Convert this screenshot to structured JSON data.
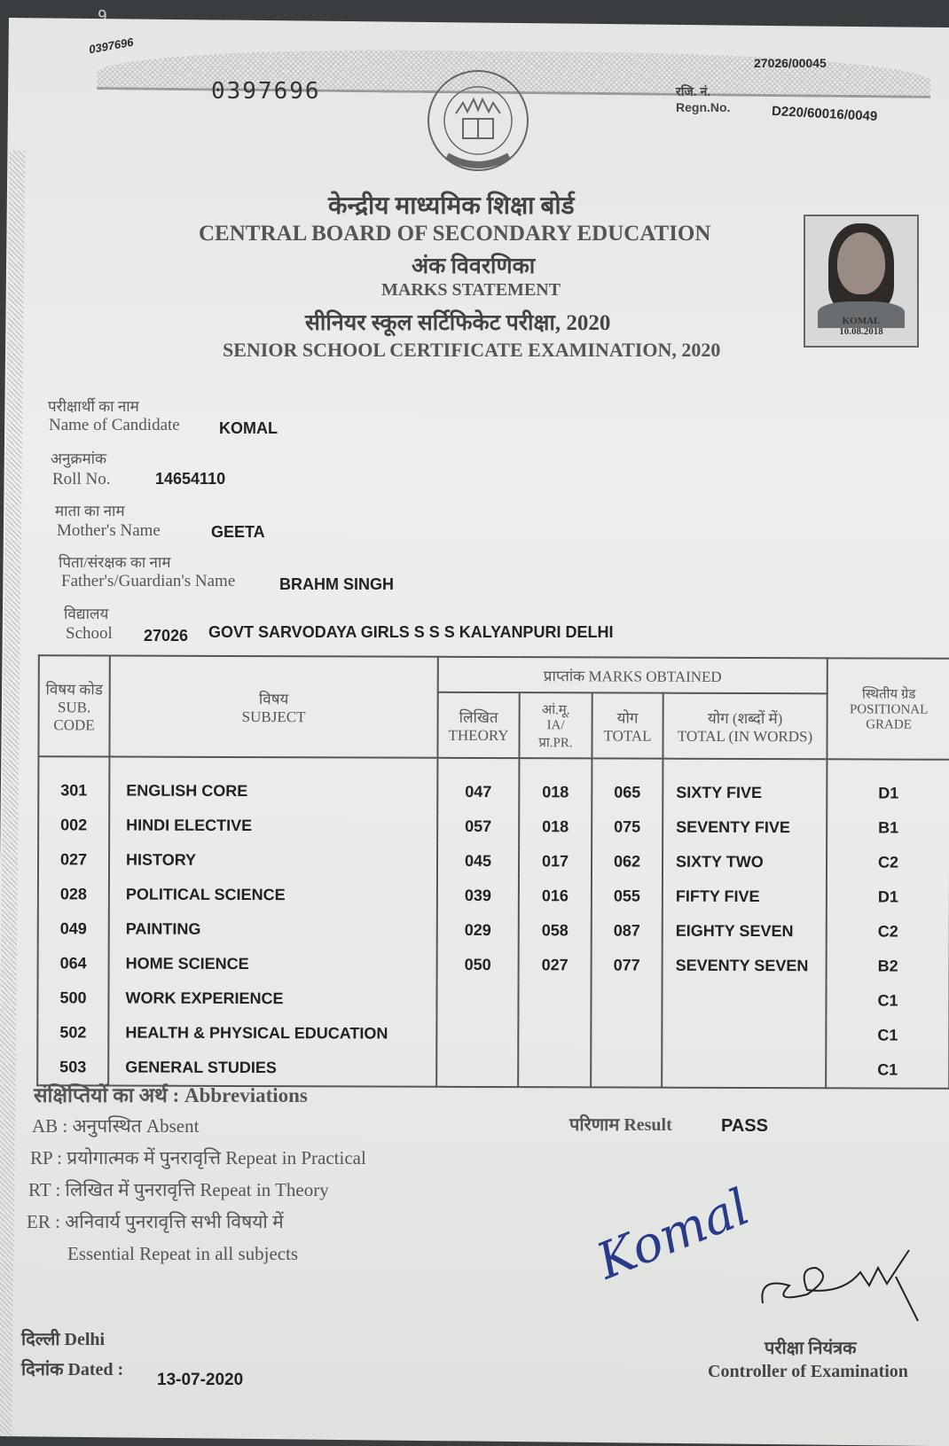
{
  "corner_number": "9",
  "serial_small": "0397696",
  "school_ref_small": "27026/00045",
  "serial": "0397696",
  "regn": {
    "label_hi": "रजि. नं.",
    "label_en": "Regn.No.",
    "value": "D220/60016/0049"
  },
  "logo_text": "केन्द्रीय माध्यमिक शिक्षा बोर्ड · भारत",
  "header": {
    "board_hi": "केन्द्रीय माध्यमिक शिक्षा बोर्ड",
    "board_en": "CENTRAL BOARD OF SECONDARY EDUCATION",
    "doc_hi": "अंक विवरणिका",
    "doc_en": "MARKS STATEMENT",
    "exam_hi": "सीनियर स्कूल सर्टिफिकेट परीक्षा, 2020",
    "exam_en": "SENIOR SCHOOL CERTIFICATE EXAMINATION, 2020"
  },
  "photo": {
    "name": "KOMAL",
    "date": "10.08.2018"
  },
  "candidate": {
    "name": {
      "label_hi": "परीक्षार्थी का नाम",
      "label_en": "Name of Candidate",
      "value": "KOMAL"
    },
    "roll": {
      "label_hi": "अनुक्रमांक",
      "label_en": "Roll No.",
      "value": "14654110"
    },
    "mother": {
      "label_hi": "माता का नाम",
      "label_en": "Mother's Name",
      "value": "GEETA"
    },
    "father": {
      "label_hi": "पिता/संरक्षक का नाम",
      "label_en": "Father's/Guardian's Name",
      "value": "BRAHM SINGH"
    },
    "school": {
      "label_hi": "विद्यालय",
      "label_en": "School",
      "code": "27026",
      "value": "GOVT SARVODAYA GIRLS S S S KALYANPURI DELHI"
    }
  },
  "table": {
    "headers": {
      "code_hi": "विषय कोड",
      "code_en1": "SUB.",
      "code_en2": "CODE",
      "subject_hi": "विषय",
      "subject_en": "SUBJECT",
      "marks_group": "प्राप्तांक MARKS OBTAINED",
      "theory_hi": "लिखित",
      "theory_en": "THEORY",
      "ia_hi": "आं.मू.",
      "ia_en": "IA/",
      "ia_pr": "प्रा.PR.",
      "total_hi": "योग",
      "total_en": "TOTAL",
      "words_hi": "योग (शब्दों में)",
      "words_en": "TOTAL (IN WORDS)",
      "grade_hi": "स्थितीय ग्रेड",
      "grade_en1": "POSITIONAL",
      "grade_en2": "GRADE"
    },
    "rows": [
      {
        "code": "301",
        "subject": "ENGLISH CORE",
        "theory": "047",
        "ia": "018",
        "total": "065",
        "words": "SIXTY FIVE",
        "grade": "D1"
      },
      {
        "code": "002",
        "subject": "HINDI ELECTIVE",
        "theory": "057",
        "ia": "018",
        "total": "075",
        "words": "SEVENTY FIVE",
        "grade": "B1"
      },
      {
        "code": "027",
        "subject": "HISTORY",
        "theory": "045",
        "ia": "017",
        "total": "062",
        "words": "SIXTY TWO",
        "grade": "C2"
      },
      {
        "code": "028",
        "subject": "POLITICAL SCIENCE",
        "theory": "039",
        "ia": "016",
        "total": "055",
        "words": "FIFTY FIVE",
        "grade": "D1"
      },
      {
        "code": "049",
        "subject": "PAINTING",
        "theory": "029",
        "ia": "058",
        "total": "087",
        "words": "EIGHTY SEVEN",
        "grade": "C2"
      },
      {
        "code": "064",
        "subject": "HOME SCIENCE",
        "theory": "050",
        "ia": "027",
        "total": "077",
        "words": "SEVENTY SEVEN",
        "grade": "B2"
      },
      {
        "code": "500",
        "subject": "WORK EXPERIENCE",
        "theory": "",
        "ia": "",
        "total": "",
        "words": "",
        "grade": "C1"
      },
      {
        "code": "502",
        "subject": "HEALTH & PHYSICAL EDUCATION",
        "theory": "",
        "ia": "",
        "total": "",
        "words": "",
        "grade": "C1"
      },
      {
        "code": "503",
        "subject": "GENERAL STUDIES",
        "theory": "",
        "ia": "",
        "total": "",
        "words": "",
        "grade": "C1"
      }
    ]
  },
  "abbreviations": {
    "title": "संक्षिप्तियों का अर्थ : Abbreviations",
    "items": [
      "AB : अनुपस्थित Absent",
      "RP : प्रयोगात्मक में पुनरावृत्ति Repeat in Practical",
      "RT : लिखित में पुनरावृत्ति Repeat in Theory",
      "ER : अनिवार्य पुनरावृत्ति सभी विषयो में",
      "Essential Repeat in all subjects"
    ]
  },
  "result": {
    "label": "परिणाम Result",
    "value": "PASS"
  },
  "signature_candidate": "Komal",
  "place": "दिल्ली Delhi",
  "dated": {
    "label": "दिनांक Dated :",
    "value": "13-07-2020"
  },
  "controller": {
    "label_hi": "परीक्षा नियंत्रक",
    "label_en": "Controller of Examination"
  }
}
